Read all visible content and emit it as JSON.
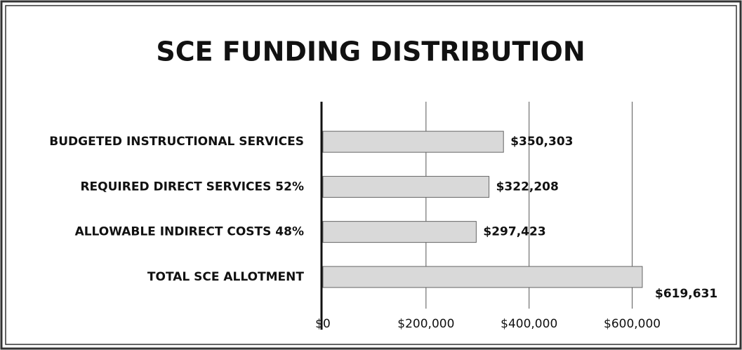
{
  "chart_data": {
    "type": "bar",
    "orientation": "horizontal",
    "title": "SCE FUNDING DISTRIBUTION",
    "categories": [
      "BUDGETED INSTRUCTIONAL SERVICES",
      "REQUIRED DIRECT SERVICES 52%",
      "ALLOWABLE INDIRECT COSTS 48%",
      "TOTAL SCE ALLOTMENT"
    ],
    "values": [
      350303,
      322208,
      297423,
      619631
    ],
    "value_labels": [
      "$350,303",
      "$322,208",
      "$297,423",
      "$619,631"
    ],
    "color": "#d9d9d9",
    "xlim": [
      0,
      700000
    ],
    "xticks": [
      {
        "value": 0,
        "label": "$0"
      },
      {
        "value": 200000,
        "label": "$200,000"
      },
      {
        "value": 400000,
        "label": "$400,000"
      },
      {
        "value": 600000,
        "label": "$600,000"
      }
    ],
    "grid": true
  }
}
